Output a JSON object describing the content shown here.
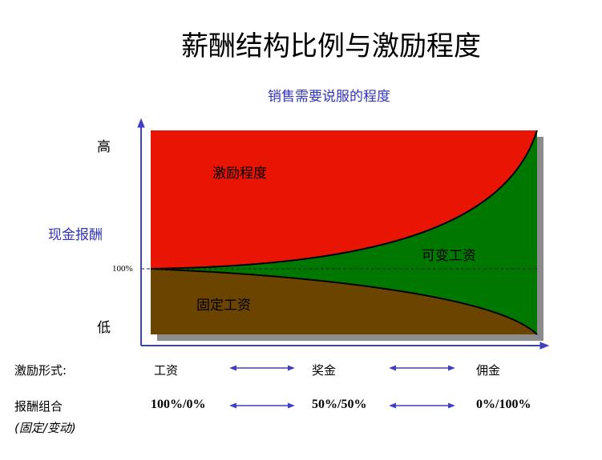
{
  "title": "薪酬结构比例与激励程度",
  "x_axis_label": "销售需要说服的程度",
  "y_axis_label": "现金报酬",
  "y_high": "高",
  "y_low": "低",
  "reference_label": "100%",
  "regions": {
    "incentive": "激励程度",
    "variable_pay": "可变工资",
    "fixed_pay": "固定工资"
  },
  "colors": {
    "incentive": "#e81505",
    "variable_pay": "#007800",
    "fixed_pay": "#6b4500",
    "axis": "#3f3fc8",
    "shadow": "#8c8c8c"
  },
  "rows": [
    {
      "label": "激励形式:",
      "values": [
        "工资",
        "奖金",
        "佣金"
      ]
    },
    {
      "label": "报酬组合",
      "sublabel": "(固定/变动)",
      "values": [
        "100%/0%",
        "50%/50%",
        "0%/100%"
      ]
    }
  ]
}
